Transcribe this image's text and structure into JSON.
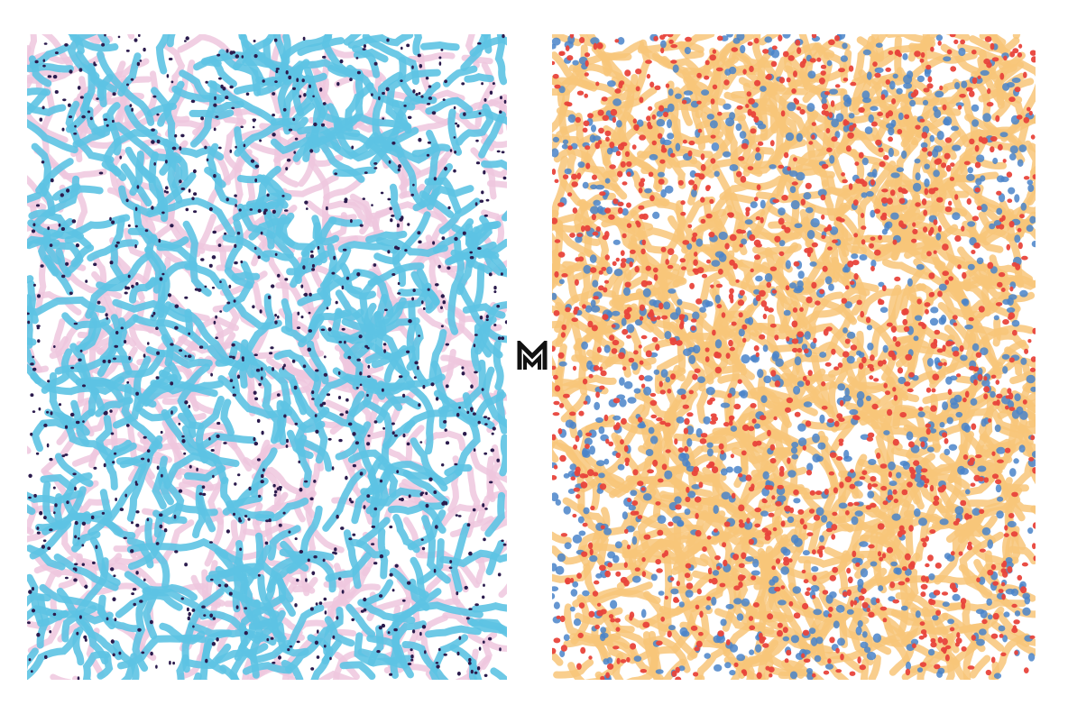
{
  "panels": [
    {
      "id": "left",
      "pattern": "terrazzo-squiggles",
      "colors": {
        "worm_primary": "#5dc3e3",
        "worm_secondary": "#eec7de",
        "speck": "#2b1b4d"
      }
    },
    {
      "id": "right",
      "pattern": "terrazzo-squiggles",
      "colors": {
        "worm_primary": "#f8c579",
        "worm_secondary": "#4a84c9",
        "speck": "#e8433b"
      }
    }
  ],
  "logo": {
    "letter": "M",
    "color": "#111111"
  }
}
